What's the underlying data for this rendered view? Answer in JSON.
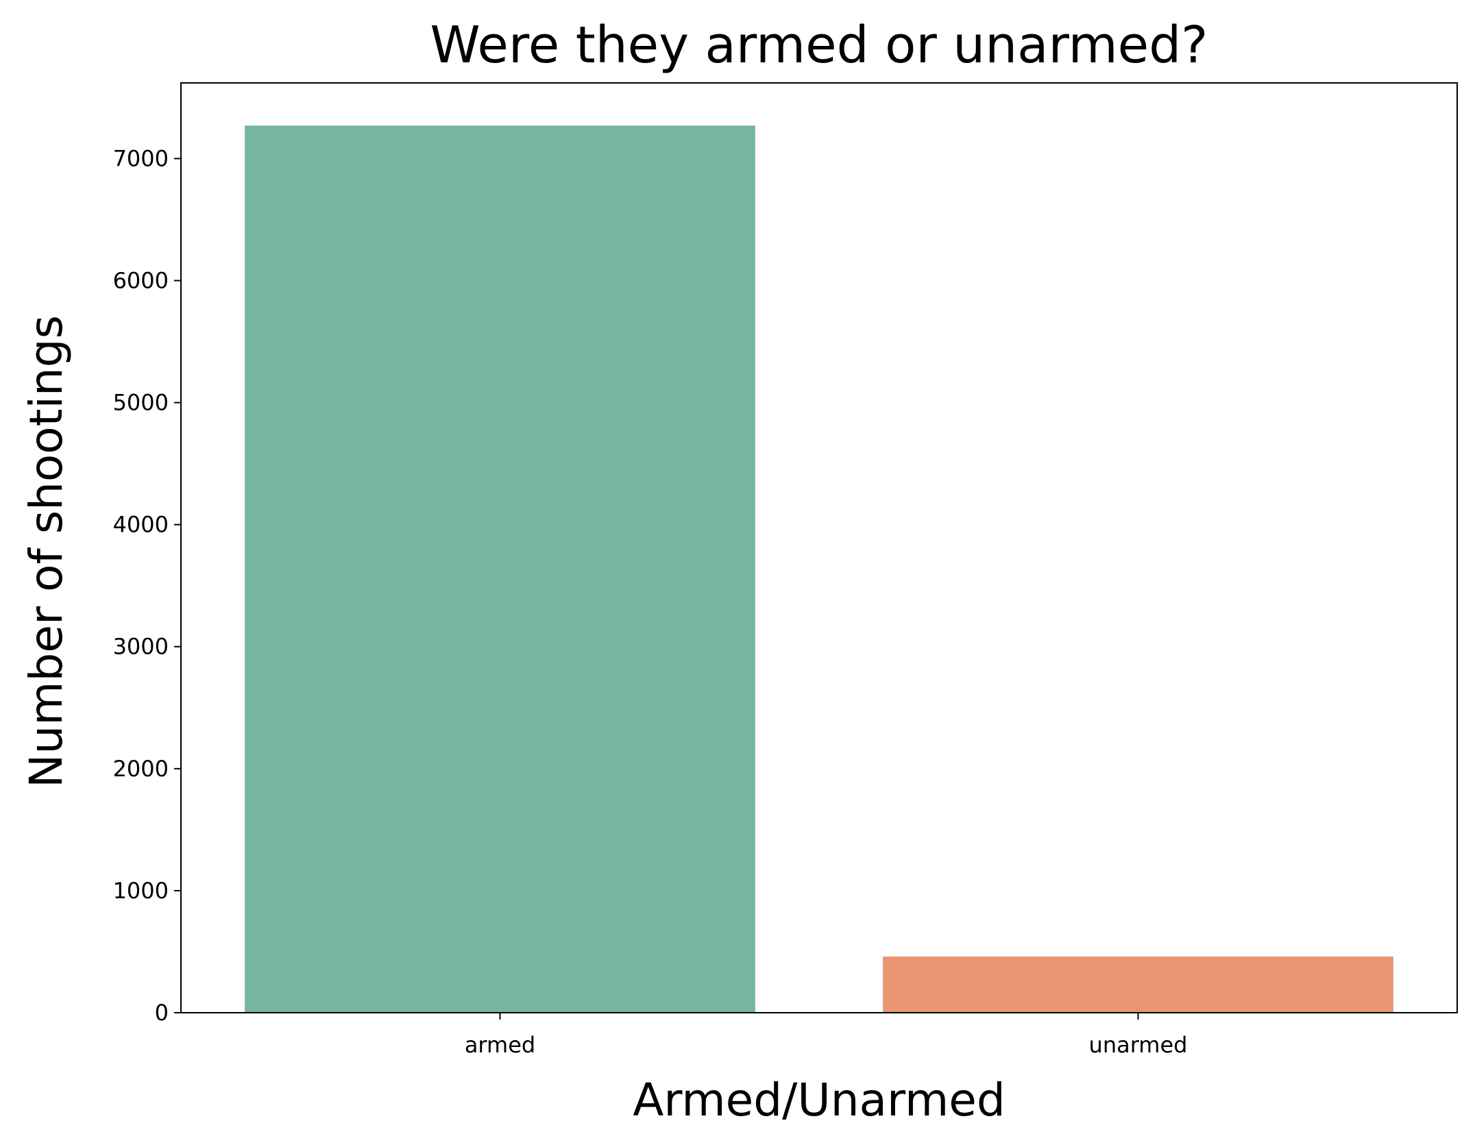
{
  "chart_data": {
    "type": "bar",
    "title": "Were they armed or unarmed?",
    "xlabel": "Armed/Unarmed",
    "ylabel": "Number of shootings",
    "categories": [
      "armed",
      "unarmed"
    ],
    "values": [
      7270,
      460
    ],
    "colors": [
      "#75b5a1",
      "#e89772"
    ],
    "ylim": [
      0,
      7620
    ],
    "yticks": [
      0,
      1000,
      2000,
      3000,
      4000,
      5000,
      6000,
      7000
    ],
    "grid": false,
    "legend": "none"
  }
}
